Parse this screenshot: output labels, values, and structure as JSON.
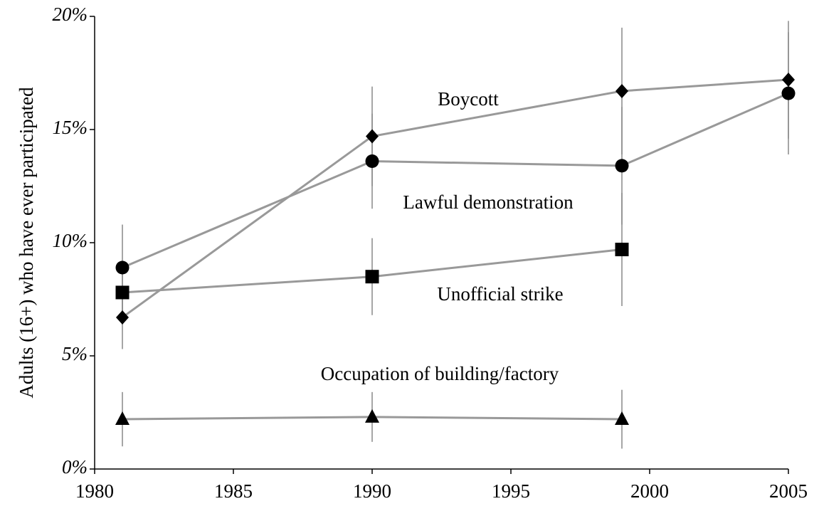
{
  "chart_data": {
    "type": "line",
    "y_label": "Adults (16+) who have ever participated",
    "xlim": [
      1980,
      2005
    ],
    "xticks": [
      1980,
      1985,
      1990,
      1995,
      2000,
      2005
    ],
    "ylim": [
      0,
      20
    ],
    "yticks": [
      {
        "value": 0,
        "label": "0%"
      },
      {
        "value": 5,
        "label": "5%"
      },
      {
        "value": 10,
        "label": "10%"
      },
      {
        "value": 15,
        "label": "15%"
      },
      {
        "value": 20,
        "label": "20%"
      }
    ],
    "line_color": "#999999",
    "marker_color": "#000000",
    "series": [
      {
        "name": "Boycott",
        "marker": "diamond",
        "x": [
          1981,
          1990,
          1999,
          2005
        ],
        "values": [
          6.7,
          14.7,
          16.7,
          17.2
        ],
        "errors": [
          1.4,
          2.2,
          2.8,
          2.6
        ]
      },
      {
        "name": "Lawful demonstration",
        "marker": "circle",
        "x": [
          1981,
          1990,
          1999,
          2005
        ],
        "values": [
          8.9,
          13.6,
          13.4,
          16.6
        ],
        "errors": [
          1.9,
          2.1,
          2.6,
          2.7
        ]
      },
      {
        "name": "Unofficial strike",
        "marker": "square",
        "x": [
          1981,
          1990,
          1999
        ],
        "values": [
          7.8,
          8.5,
          9.7
        ],
        "errors": [
          1.0,
          1.7,
          2.5
        ]
      },
      {
        "name": "Occupation of building/factory",
        "marker": "triangle",
        "x": [
          1981,
          1990,
          1999
        ],
        "values": [
          2.2,
          2.3,
          2.2
        ],
        "errors": [
          1.2,
          1.1,
          1.3
        ]
      }
    ]
  }
}
